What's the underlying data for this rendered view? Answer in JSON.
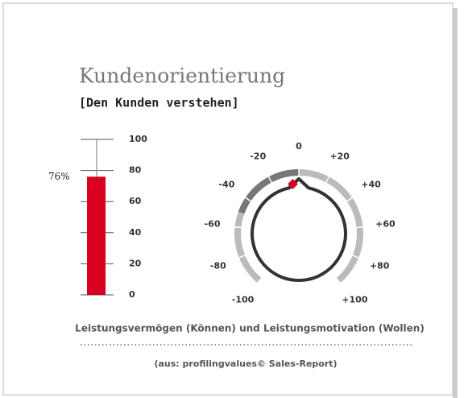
{
  "title": "Kundenorientierung",
  "subtitle": "[Den Kunden verstehen]",
  "chart_data": [
    {
      "type": "bar",
      "values": [
        76
      ],
      "value_labels": [
        "76%"
      ],
      "color": "#d8001e",
      "ylim": [
        0,
        100
      ],
      "yticks": [
        0,
        20,
        40,
        60,
        80,
        100
      ]
    },
    {
      "type": "gauge",
      "value": -5,
      "color": "#d8001e",
      "xlim": [
        -100,
        100
      ],
      "xticks": [
        -100,
        -80,
        -60,
        -40,
        -20,
        0,
        {
          "value": 20,
          "label": "+20"
        },
        {
          "value": 40,
          "label": "+40"
        },
        {
          "value": 60,
          "label": "+60"
        },
        {
          "value": 80,
          "label": "+80"
        },
        {
          "value": 100,
          "label": "+100"
        }
      ]
    }
  ],
  "caption": "Leistungsvermögen (Können) und Leistungsmotivation (Wollen)",
  "source": "(aus: profilingvalues© Sales-Report)"
}
